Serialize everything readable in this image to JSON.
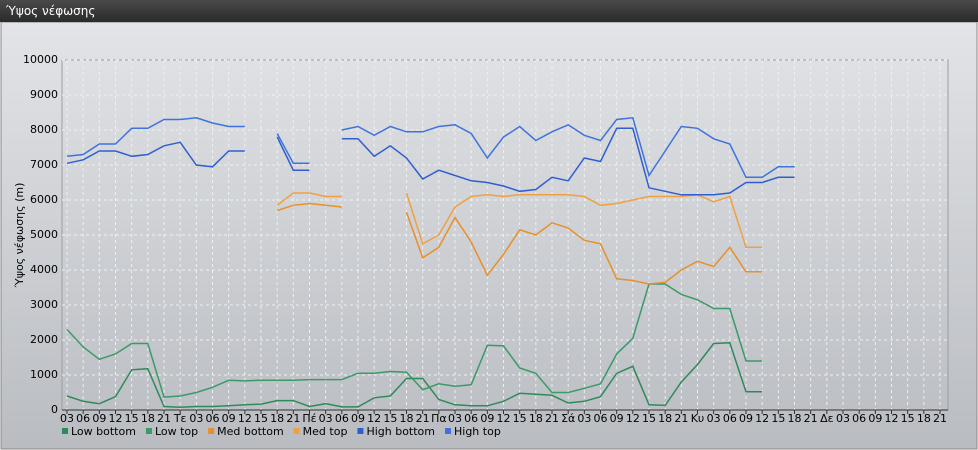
{
  "chart_data": {
    "type": "line",
    "title": "Ύψος νέφωσης",
    "y_label": "Ύψος νέφωσης (m)",
    "categories": [
      "03",
      "06",
      "09",
      "12",
      "15",
      "18",
      "21",
      "Τε",
      "03",
      "06",
      "09",
      "12",
      "15",
      "18",
      "21",
      "Πέ",
      "03",
      "06",
      "09",
      "12",
      "15",
      "18",
      "21",
      "Πα",
      "03",
      "06",
      "09",
      "12",
      "15",
      "18",
      "21",
      "Σά",
      "03",
      "06",
      "09",
      "12",
      "15",
      "18",
      "21",
      "Κυ",
      "03",
      "06",
      "09",
      "12",
      "15",
      "18",
      "21",
      "Δε",
      "03",
      "06",
      "09",
      "12",
      "15",
      "18",
      "21"
    ],
    "ylim": [
      0,
      10000
    ],
    "yticks": [
      0,
      1000,
      2000,
      3000,
      4000,
      5000,
      6000,
      7000,
      8000,
      9000,
      10000
    ],
    "grid": true,
    "series": [
      {
        "name": "Low bottom",
        "color": "#2f8a5a",
        "values": [
          400,
          250,
          180,
          380,
          1150,
          1180,
          100,
          80,
          100,
          100,
          120,
          150,
          170,
          270,
          270,
          100,
          180,
          90,
          90,
          350,
          400,
          900,
          900,
          300,
          150,
          120,
          120,
          250,
          480,
          450,
          420,
          200,
          250,
          380,
          1050,
          1250,
          150,
          130,
          800,
          1300,
          1900,
          1920,
          520,
          520,
          null,
          null,
          null,
          null,
          null,
          null,
          null,
          null,
          null,
          null,
          null
        ]
      },
      {
        "name": "Low top",
        "color": "#3b9a68",
        "values": [
          2300,
          1800,
          1450,
          1600,
          1900,
          1900,
          370,
          400,
          500,
          650,
          850,
          830,
          850,
          850,
          850,
          870,
          870,
          870,
          1050,
          1050,
          1100,
          1080,
          580,
          750,
          680,
          720,
          1850,
          1830,
          1200,
          1050,
          500,
          500,
          620,
          750,
          1600,
          2050,
          3600,
          3600,
          3300,
          3150,
          2900,
          2900,
          1400,
          1400,
          null,
          null,
          null,
          null,
          null,
          null,
          null,
          null,
          null,
          null,
          null
        ]
      },
      {
        "name": "Med bottom",
        "color": "#e8902a",
        "values": [
          null,
          null,
          null,
          null,
          null,
          null,
          null,
          null,
          null,
          null,
          null,
          null,
          null,
          5700,
          5850,
          5900,
          5850,
          5800,
          null,
          null,
          null,
          5650,
          4350,
          4650,
          5500,
          4800,
          3850,
          4450,
          5150,
          5000,
          5350,
          5200,
          4850,
          4750,
          3750,
          3700,
          3600,
          3650,
          4000,
          4250,
          4100,
          4650,
          3950,
          3950,
          null,
          null,
          null,
          null,
          null,
          null,
          null,
          null,
          null,
          null,
          null
        ]
      },
      {
        "name": "Med top",
        "color": "#f0a040",
        "values": [
          null,
          null,
          null,
          null,
          null,
          null,
          null,
          null,
          null,
          null,
          null,
          null,
          null,
          5850,
          6200,
          6200,
          6100,
          6100,
          null,
          null,
          null,
          6200,
          4750,
          5000,
          5800,
          6100,
          6150,
          6100,
          6150,
          6150,
          6150,
          6150,
          6100,
          5850,
          5900,
          6000,
          6100,
          6100,
          6100,
          6150,
          5950,
          6100,
          4650,
          4650,
          null,
          null,
          null,
          null,
          null,
          null,
          null,
          null,
          null,
          null,
          null
        ]
      },
      {
        "name": "High bottom",
        "color": "#2f5fcf",
        "values": [
          7050,
          7150,
          7400,
          7400,
          7250,
          7300,
          7550,
          7650,
          7000,
          6950,
          7400,
          7400,
          null,
          7800,
          6850,
          6850,
          null,
          7750,
          7750,
          7250,
          7550,
          7200,
          6600,
          6850,
          6700,
          6550,
          6500,
          6400,
          6250,
          6300,
          6650,
          6550,
          7200,
          7100,
          8050,
          8050,
          6350,
          6250,
          6150,
          6150,
          6150,
          6200,
          6500,
          6500,
          6650,
          6650,
          null,
          null,
          null,
          null,
          null,
          null,
          null,
          null,
          null
        ]
      },
      {
        "name": "High top",
        "color": "#3f72de",
        "values": [
          7250,
          7300,
          7600,
          7600,
          8050,
          8050,
          8300,
          8300,
          8350,
          8200,
          8100,
          8100,
          null,
          7900,
          7050,
          7050,
          null,
          8000,
          8100,
          7850,
          8100,
          7950,
          7950,
          8100,
          8150,
          7900,
          7200,
          7800,
          8100,
          7700,
          7950,
          8150,
          7850,
          7700,
          8300,
          8350,
          6700,
          7400,
          8100,
          8050,
          7750,
          7600,
          6650,
          6650,
          6950,
          6950,
          null,
          null,
          null,
          null,
          null,
          null,
          null,
          null,
          null
        ]
      }
    ]
  }
}
